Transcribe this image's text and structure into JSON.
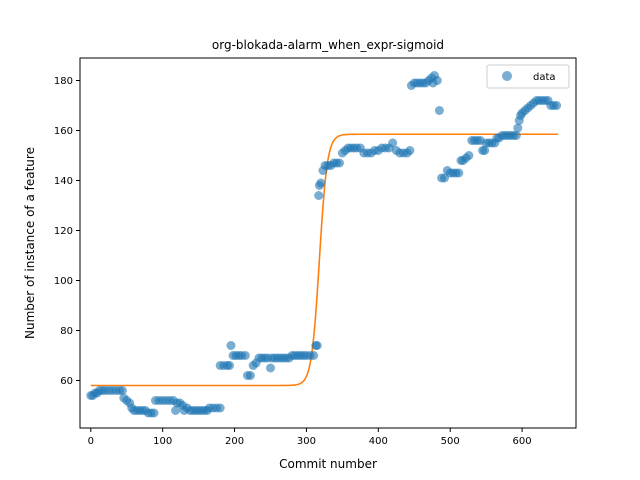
{
  "chart_data": {
    "type": "scatter",
    "title": "org-blokada-alarm_when_expr-sigmoid",
    "xlabel": "Commit number",
    "ylabel": "Number of instance of a feature",
    "xlim": [
      -15,
      675
    ],
    "ylim": [
      41,
      189
    ],
    "xticks": [
      0,
      100,
      200,
      300,
      400,
      500,
      600
    ],
    "yticks": [
      60,
      80,
      100,
      120,
      140,
      160,
      180
    ],
    "grid": false,
    "legend": {
      "placement": "top-right",
      "entries": [
        "data"
      ]
    },
    "colors": {
      "data": "#1f77b4",
      "fit": "#ff7f0e"
    },
    "series": [
      {
        "name": "data",
        "kind": "scatter",
        "points": [
          [
            0,
            54
          ],
          [
            3,
            54
          ],
          [
            6,
            55
          ],
          [
            9,
            55
          ],
          [
            12,
            56
          ],
          [
            16,
            56
          ],
          [
            20,
            56
          ],
          [
            25,
            56
          ],
          [
            30,
            56
          ],
          [
            35,
            56
          ],
          [
            40,
            56
          ],
          [
            44,
            56
          ],
          [
            46,
            53
          ],
          [
            50,
            52
          ],
          [
            54,
            51
          ],
          [
            57,
            49
          ],
          [
            60,
            48
          ],
          [
            64,
            48
          ],
          [
            68,
            48
          ],
          [
            72,
            48
          ],
          [
            76,
            48
          ],
          [
            80,
            47
          ],
          [
            84,
            47
          ],
          [
            88,
            47
          ],
          [
            90,
            52
          ],
          [
            95,
            52
          ],
          [
            100,
            52
          ],
          [
            105,
            52
          ],
          [
            110,
            52
          ],
          [
            115,
            52
          ],
          [
            118,
            48
          ],
          [
            120,
            51
          ],
          [
            124,
            51
          ],
          [
            128,
            50
          ],
          [
            130,
            48
          ],
          [
            134,
            49
          ],
          [
            138,
            48
          ],
          [
            142,
            48
          ],
          [
            146,
            48
          ],
          [
            150,
            48
          ],
          [
            154,
            48
          ],
          [
            158,
            48
          ],
          [
            162,
            48
          ],
          [
            165,
            49
          ],
          [
            170,
            49
          ],
          [
            175,
            49
          ],
          [
            180,
            49
          ],
          [
            180,
            66
          ],
          [
            185,
            66
          ],
          [
            190,
            66
          ],
          [
            193,
            66
          ],
          [
            195,
            74
          ],
          [
            198,
            70
          ],
          [
            202,
            70
          ],
          [
            206,
            70
          ],
          [
            210,
            70
          ],
          [
            215,
            70
          ],
          [
            218,
            62
          ],
          [
            222,
            62
          ],
          [
            226,
            66
          ],
          [
            230,
            67
          ],
          [
            234,
            69
          ],
          [
            238,
            69
          ],
          [
            242,
            69
          ],
          [
            246,
            69
          ],
          [
            250,
            65
          ],
          [
            252,
            69
          ],
          [
            256,
            69
          ],
          [
            260,
            69
          ],
          [
            264,
            69
          ],
          [
            268,
            69
          ],
          [
            272,
            69
          ],
          [
            276,
            69
          ],
          [
            280,
            70
          ],
          [
            284,
            70
          ],
          [
            288,
            70
          ],
          [
            292,
            70
          ],
          [
            296,
            70
          ],
          [
            300,
            70
          ],
          [
            305,
            70
          ],
          [
            310,
            70
          ],
          [
            313,
            74
          ],
          [
            315,
            74
          ],
          [
            317,
            134
          ],
          [
            318,
            138
          ],
          [
            320,
            139
          ],
          [
            323,
            144
          ],
          [
            326,
            146
          ],
          [
            330,
            146
          ],
          [
            334,
            146
          ],
          [
            338,
            147
          ],
          [
            342,
            147
          ],
          [
            346,
            147
          ],
          [
            350,
            151
          ],
          [
            354,
            152
          ],
          [
            358,
            153
          ],
          [
            362,
            153
          ],
          [
            366,
            153
          ],
          [
            370,
            153
          ],
          [
            375,
            153
          ],
          [
            380,
            151
          ],
          [
            385,
            151
          ],
          [
            390,
            151
          ],
          [
            395,
            152
          ],
          [
            400,
            152
          ],
          [
            405,
            153
          ],
          [
            410,
            153
          ],
          [
            415,
            153
          ],
          [
            420,
            155
          ],
          [
            425,
            152
          ],
          [
            430,
            151
          ],
          [
            435,
            151
          ],
          [
            440,
            151
          ],
          [
            444,
            152
          ],
          [
            446,
            178
          ],
          [
            450,
            179
          ],
          [
            454,
            179
          ],
          [
            458,
            179
          ],
          [
            462,
            179
          ],
          [
            466,
            179
          ],
          [
            470,
            180
          ],
          [
            474,
            181
          ],
          [
            476,
            179
          ],
          [
            478,
            182
          ],
          [
            482,
            180
          ],
          [
            485,
            168
          ],
          [
            488,
            141
          ],
          [
            492,
            141
          ],
          [
            496,
            144
          ],
          [
            500,
            143
          ],
          [
            504,
            143
          ],
          [
            508,
            143
          ],
          [
            512,
            143
          ],
          [
            515,
            148
          ],
          [
            518,
            148
          ],
          [
            522,
            149
          ],
          [
            526,
            150
          ],
          [
            530,
            156
          ],
          [
            534,
            156
          ],
          [
            538,
            156
          ],
          [
            542,
            156
          ],
          [
            545,
            152
          ],
          [
            548,
            152
          ],
          [
            550,
            155
          ],
          [
            554,
            155
          ],
          [
            558,
            155
          ],
          [
            562,
            155
          ],
          [
            565,
            157
          ],
          [
            568,
            157
          ],
          [
            572,
            158
          ],
          [
            576,
            158
          ],
          [
            580,
            158
          ],
          [
            584,
            158
          ],
          [
            588,
            158
          ],
          [
            592,
            158
          ],
          [
            594,
            161
          ],
          [
            596,
            164
          ],
          [
            598,
            166
          ],
          [
            600,
            167
          ],
          [
            604,
            168
          ],
          [
            608,
            169
          ],
          [
            612,
            170
          ],
          [
            616,
            171
          ],
          [
            620,
            172
          ],
          [
            624,
            172
          ],
          [
            628,
            172
          ],
          [
            632,
            172
          ],
          [
            636,
            172
          ],
          [
            640,
            170
          ],
          [
            644,
            170
          ],
          [
            648,
            170
          ]
        ]
      },
      {
        "kind": "line",
        "sigmoid": {
          "low": 58,
          "high": 158.5,
          "mid": 318,
          "scale": 5.5,
          "x_start": 0,
          "x_end": 650
        }
      }
    ]
  }
}
